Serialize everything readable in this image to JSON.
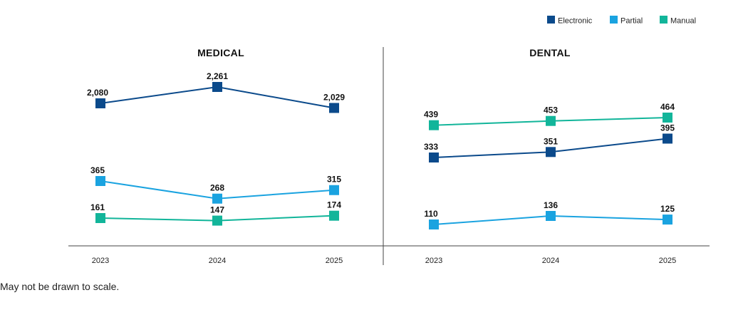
{
  "chart_data": [
    {
      "type": "line",
      "title": "MEDICAL",
      "categories": [
        "2023",
        "2024",
        "2025"
      ],
      "series": [
        {
          "name": "Electronic",
          "values": [
            2080,
            2261,
            2029
          ],
          "labels": [
            "2,080",
            "2,261",
            "2,029"
          ],
          "color": "#0b4a8b"
        },
        {
          "name": "Partial",
          "values": [
            365,
            268,
            315
          ],
          "labels": [
            "365",
            "268",
            "315"
          ],
          "color": "#1aa3e0"
        },
        {
          "name": "Manual",
          "values": [
            161,
            147,
            174
          ],
          "labels": [
            "161",
            "147",
            "174"
          ],
          "color": "#12b59a"
        }
      ]
    },
    {
      "type": "line",
      "title": "DENTAL",
      "categories": [
        "2023",
        "2024",
        "2025"
      ],
      "series": [
        {
          "name": "Electronic",
          "values": [
            333,
            351,
            395
          ],
          "labels": [
            "333",
            "351",
            "395"
          ],
          "color": "#0b4a8b"
        },
        {
          "name": "Partial",
          "values": [
            110,
            136,
            125
          ],
          "labels": [
            "110",
            "136",
            "125"
          ],
          "color": "#1aa3e0"
        },
        {
          "name": "Manual",
          "values": [
            439,
            453,
            464
          ],
          "labels": [
            "439",
            "453",
            "464"
          ],
          "color": "#12b59a"
        }
      ]
    }
  ],
  "legend": [
    {
      "name": "Electronic",
      "color": "#0b4a8b"
    },
    {
      "name": "Partial",
      "color": "#1aa3e0"
    },
    {
      "name": "Manual",
      "color": "#12b59a"
    }
  ],
  "footnote": "May not be drawn to scale."
}
